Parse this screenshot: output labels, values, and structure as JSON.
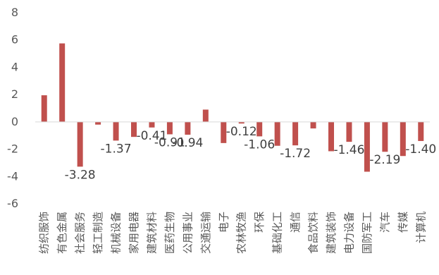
{
  "chart_data": {
    "type": "bar",
    "title": "",
    "xlabel": "",
    "ylabel": "",
    "ylim": [
      -6,
      8
    ],
    "yticks": [
      -6,
      -4,
      -2,
      0,
      2,
      4,
      6,
      8
    ],
    "grid": false,
    "legend": "none",
    "bar_color": "#C0504D",
    "categories": [
      "纺织服饰",
      "有色金属",
      "社会服务",
      "轻工制造",
      "机械设备",
      "家用电器",
      "建筑材料",
      "医药生物",
      "公用事业",
      "交通运输",
      "电子",
      "农林牧渔",
      "环保",
      "基础化工",
      "通信",
      "食品饮料",
      "建筑装饰",
      "电力设备",
      "国防军工",
      "汽车",
      "传媒",
      "计算机"
    ],
    "values": [
      1.95,
      5.75,
      -3.28,
      -0.2,
      -1.37,
      -1.1,
      -0.41,
      -0.91,
      -0.94,
      0.9,
      -1.55,
      -0.12,
      -1.06,
      -1.75,
      -1.72,
      -0.48,
      -2.15,
      -1.46,
      -3.65,
      -2.19,
      -2.5,
      -1.4
    ],
    "data_labels": [
      {
        "index": 2,
        "text": "-3.28"
      },
      {
        "index": 4,
        "text": "-1.37"
      },
      {
        "index": 6,
        "text": "-0.41"
      },
      {
        "index": 7,
        "text": "-0.91"
      },
      {
        "index": 8,
        "text": "-0.94"
      },
      {
        "index": 11,
        "text": "-0.12"
      },
      {
        "index": 12,
        "text": "-1.06"
      },
      {
        "index": 14,
        "text": "-1.72"
      },
      {
        "index": 17,
        "text": "-1.46"
      },
      {
        "index": 19,
        "text": "-2.19"
      },
      {
        "index": 21,
        "text": "-1.40"
      }
    ]
  }
}
